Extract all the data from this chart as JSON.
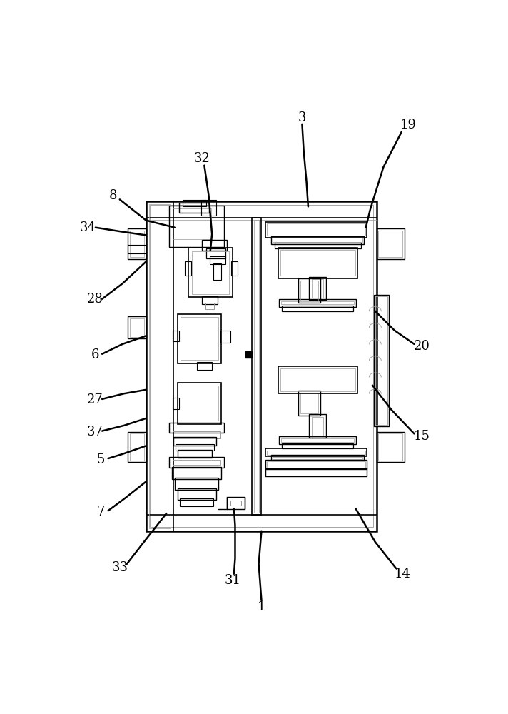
{
  "fig_width": 7.12,
  "fig_height": 10.0,
  "bg_color": "#ffffff",
  "lc": "#000000",
  "lc_gray": "#999999",
  "lc_lgray": "#bbbbbb"
}
